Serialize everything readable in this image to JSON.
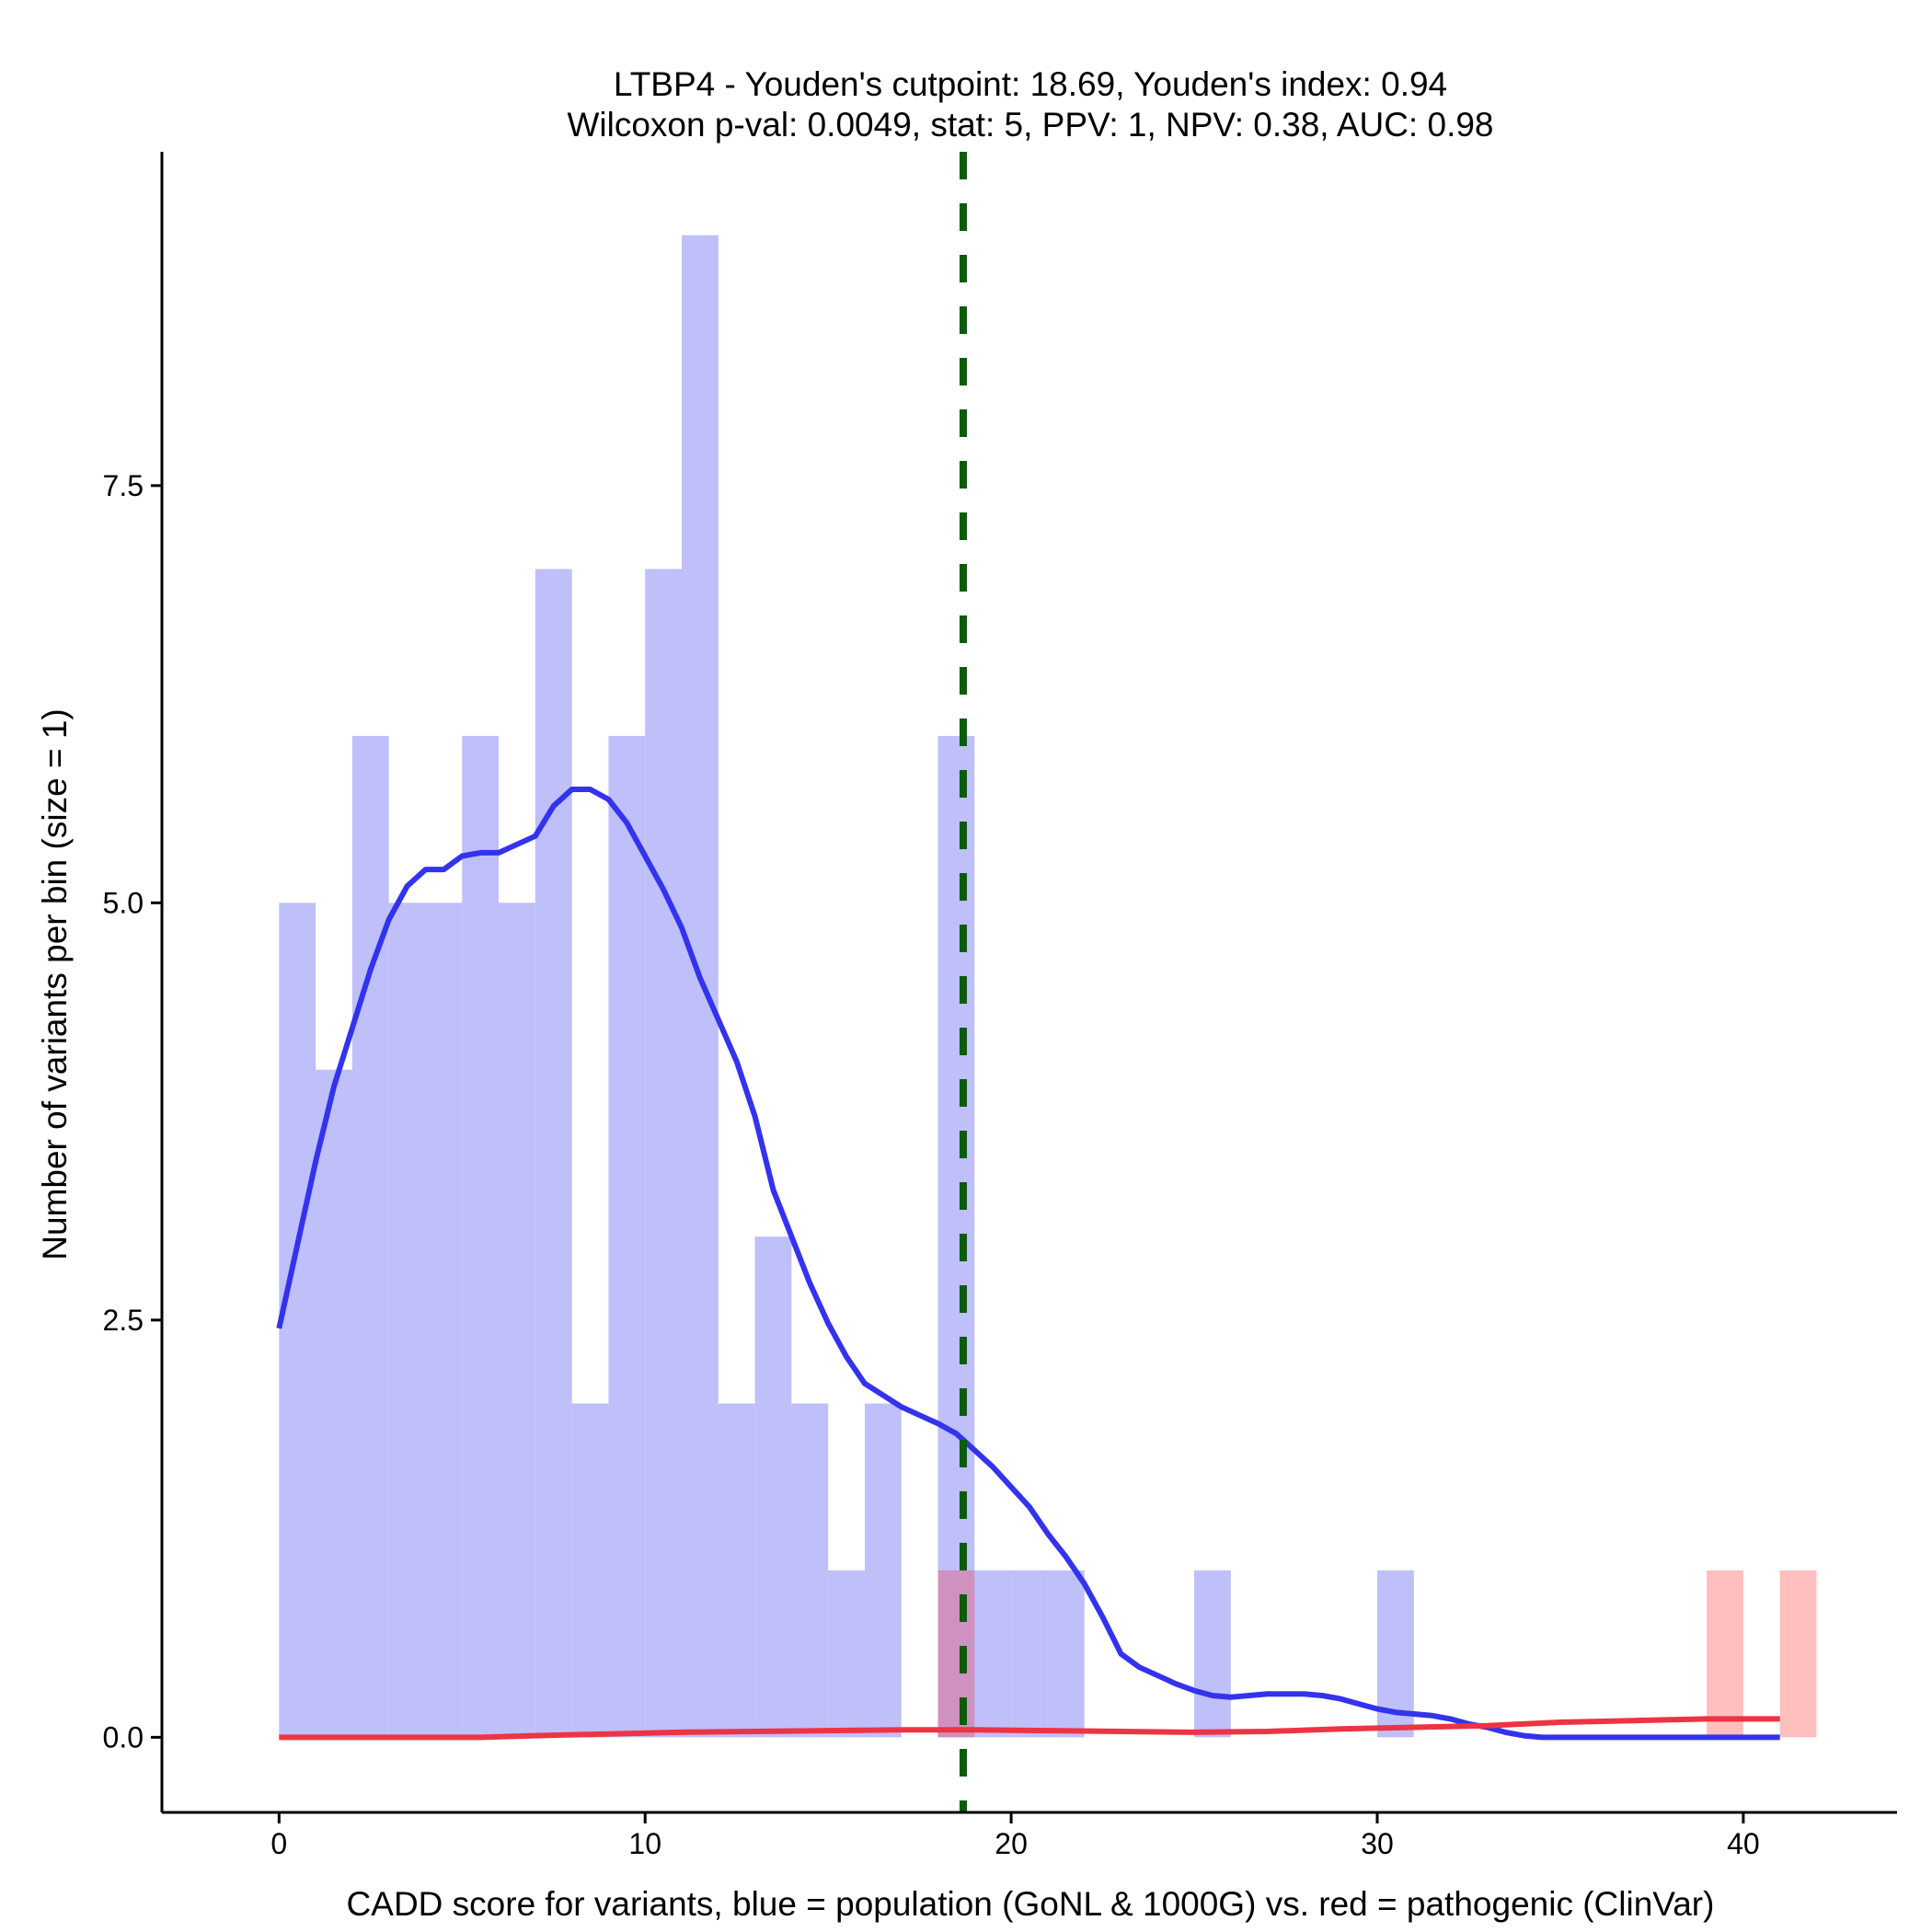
{
  "chart_data": {
    "type": "bar",
    "title_line1": "LTBP4 - Youden's cutpoint: 18.69, Youden's index: 0.94",
    "title_line2": "Wilcoxon p-val: 0.0049, stat: 5, PPV: 1, NPV: 0.38, AUC: 0.98",
    "xlabel": "CADD score for variants, blue = population (GoNL & 1000G) vs. red = pathogenic (ClinVar)",
    "ylabel": "Number of variants per bin (size = 1)",
    "xlim": [
      -3.2,
      44.2
    ],
    "ylim": [
      -0.45,
      9.5
    ],
    "x_ticks": [
      0,
      10,
      20,
      30,
      40
    ],
    "x_tick_labels": [
      "0",
      "10",
      "20",
      "30",
      "40"
    ],
    "y_ticks": [
      0,
      2.5,
      5,
      7.5
    ],
    "y_tick_labels": [
      "0.0",
      "2.5",
      "5.0",
      "7.5"
    ],
    "bin_width": 1,
    "cutpoint": 18.69,
    "colors": {
      "population_bar": "#bfbffa",
      "pathogenic_bar": "#ffbfbf",
      "overlap_bar": "#cf91bf",
      "population_density": "#3333ee",
      "pathogenic_density": "#ee3344",
      "cutpoint_line": "#0b5c0b"
    },
    "series": [
      {
        "name": "population (GoNL & 1000G)",
        "bins": [
          {
            "x0": 0,
            "count": 5
          },
          {
            "x0": 1,
            "count": 4
          },
          {
            "x0": 2,
            "count": 6
          },
          {
            "x0": 3,
            "count": 5
          },
          {
            "x0": 4,
            "count": 5
          },
          {
            "x0": 5,
            "count": 6
          },
          {
            "x0": 6,
            "count": 5
          },
          {
            "x0": 7,
            "count": 7
          },
          {
            "x0": 8,
            "count": 2
          },
          {
            "x0": 9,
            "count": 6
          },
          {
            "x0": 10,
            "count": 7
          },
          {
            "x0": 11,
            "count": 9
          },
          {
            "x0": 12,
            "count": 2
          },
          {
            "x0": 13,
            "count": 3
          },
          {
            "x0": 14,
            "count": 2
          },
          {
            "x0": 15,
            "count": 1
          },
          {
            "x0": 16,
            "count": 2
          },
          {
            "x0": 18,
            "count": 6
          },
          {
            "x0": 19,
            "count": 1
          },
          {
            "x0": 20,
            "count": 1
          },
          {
            "x0": 21,
            "count": 1
          },
          {
            "x0": 25,
            "count": 1
          },
          {
            "x0": 30,
            "count": 1
          }
        ]
      },
      {
        "name": "pathogenic (ClinVar)",
        "bins": [
          {
            "x0": 18,
            "count": 1
          },
          {
            "x0": 39,
            "count": 1
          },
          {
            "x0": 41,
            "count": 1
          }
        ]
      }
    ],
    "density": {
      "population": [
        [
          0,
          2.45
        ],
        [
          0.5,
          2.95
        ],
        [
          1,
          3.45
        ],
        [
          1.5,
          3.9
        ],
        [
          2,
          4.25
        ],
        [
          2.5,
          4.6
        ],
        [
          3,
          4.9
        ],
        [
          3.5,
          5.1
        ],
        [
          4,
          5.2
        ],
        [
          4.5,
          5.2
        ],
        [
          5,
          5.28
        ],
        [
          5.5,
          5.3
        ],
        [
          6,
          5.3
        ],
        [
          6.5,
          5.35
        ],
        [
          7,
          5.4
        ],
        [
          7.5,
          5.58
        ],
        [
          8,
          5.68
        ],
        [
          8.5,
          5.68
        ],
        [
          9,
          5.62
        ],
        [
          9.5,
          5.48
        ],
        [
          10,
          5.28
        ],
        [
          10.5,
          5.08
        ],
        [
          11,
          4.85
        ],
        [
          11.5,
          4.55
        ],
        [
          12,
          4.3
        ],
        [
          12.5,
          4.05
        ],
        [
          13,
          3.72
        ],
        [
          13.5,
          3.28
        ],
        [
          14,
          3.0
        ],
        [
          14.5,
          2.72
        ],
        [
          15,
          2.48
        ],
        [
          15.5,
          2.28
        ],
        [
          16,
          2.12
        ],
        [
          16.5,
          2.05
        ],
        [
          17,
          1.98
        ],
        [
          17.5,
          1.93
        ],
        [
          18,
          1.88
        ],
        [
          18.5,
          1.82
        ],
        [
          19,
          1.72
        ],
        [
          19.5,
          1.62
        ],
        [
          20,
          1.5
        ],
        [
          20.5,
          1.38
        ],
        [
          21,
          1.22
        ],
        [
          21.5,
          1.08
        ],
        [
          22,
          0.92
        ],
        [
          22.5,
          0.72
        ],
        [
          23,
          0.5
        ],
        [
          23.5,
          0.42
        ],
        [
          24,
          0.37
        ],
        [
          24.5,
          0.32
        ],
        [
          25,
          0.28
        ],
        [
          25.5,
          0.25
        ],
        [
          26,
          0.24
        ],
        [
          26.5,
          0.25
        ],
        [
          27,
          0.26
        ],
        [
          27.5,
          0.26
        ],
        [
          28,
          0.26
        ],
        [
          28.5,
          0.25
        ],
        [
          29,
          0.23
        ],
        [
          29.5,
          0.2
        ],
        [
          30,
          0.17
        ],
        [
          30.5,
          0.15
        ],
        [
          31,
          0.14
        ],
        [
          31.5,
          0.13
        ],
        [
          32,
          0.11
        ],
        [
          32.5,
          0.08
        ],
        [
          33,
          0.06
        ],
        [
          33.5,
          0.03
        ],
        [
          34,
          0.01
        ],
        [
          34.5,
          0.0
        ],
        [
          35,
          0.0
        ],
        [
          41,
          0.0
        ]
      ],
      "pathogenic": [
        [
          0,
          0.0
        ],
        [
          2,
          0.0
        ],
        [
          4,
          0.0
        ],
        [
          5.5,
          0.0
        ],
        [
          7,
          0.01
        ],
        [
          9,
          0.02
        ],
        [
          11,
          0.03
        ],
        [
          13,
          0.035
        ],
        [
          15,
          0.04
        ],
        [
          17,
          0.045
        ],
        [
          19,
          0.045
        ],
        [
          21,
          0.04
        ],
        [
          23,
          0.035
        ],
        [
          25,
          0.03
        ],
        [
          27,
          0.035
        ],
        [
          29,
          0.05
        ],
        [
          31,
          0.06
        ],
        [
          33,
          0.07
        ],
        [
          35,
          0.09
        ],
        [
          37,
          0.1
        ],
        [
          39,
          0.11
        ],
        [
          41,
          0.11
        ]
      ]
    }
  }
}
